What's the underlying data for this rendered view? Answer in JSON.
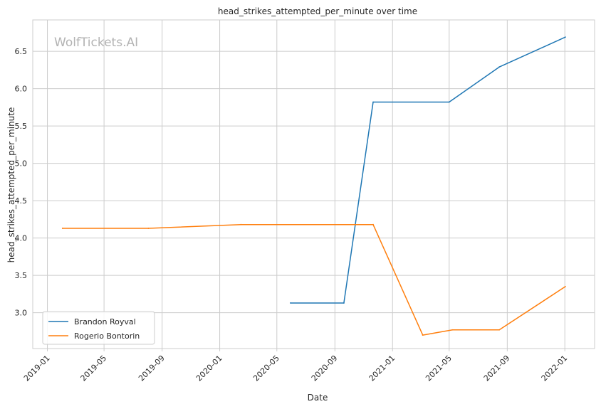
{
  "chart_data": {
    "type": "line",
    "title": "head_strikes_attempted_per_minute over time",
    "xlabel": "Date",
    "ylabel": "head_strikes_attempted_per_minute",
    "watermark": "WolfTickets.AI",
    "x_ticks": [
      "2019-01",
      "2019-05",
      "2019-09",
      "2020-01",
      "2020-05",
      "2020-09",
      "2021-01",
      "2021-05",
      "2021-09",
      "2022-01"
    ],
    "y_ticks": [
      "3.0",
      "3.5",
      "4.0",
      "4.5",
      "5.0",
      "5.5",
      "6.0",
      "6.5"
    ],
    "xlim": [
      "2018-12-01",
      "2022-03-05"
    ],
    "ylim": [
      2.52,
      6.92
    ],
    "grid": true,
    "legend_position": "lower-left",
    "series": [
      {
        "name": "Brandon Royval",
        "color": "#1f77b4",
        "points": [
          {
            "x": "2020-05-30",
            "y": 3.13
          },
          {
            "x": "2020-09-20",
            "y": 3.13
          },
          {
            "x": "2020-11-21",
            "y": 5.82
          },
          {
            "x": "2021-05-01",
            "y": 5.82
          },
          {
            "x": "2021-08-15",
            "y": 6.29
          },
          {
            "x": "2022-01-02",
            "y": 6.69
          }
        ]
      },
      {
        "name": "Rogerio Bontorin",
        "color": "#ff7f0e",
        "points": [
          {
            "x": "2019-02-02",
            "y": 4.13
          },
          {
            "x": "2019-08-03",
            "y": 4.13
          },
          {
            "x": "2020-02-15",
            "y": 4.18
          },
          {
            "x": "2020-11-21",
            "y": 4.18
          },
          {
            "x": "2021-03-06",
            "y": 2.7
          },
          {
            "x": "2021-05-08",
            "y": 2.77
          },
          {
            "x": "2021-08-15",
            "y": 2.77
          },
          {
            "x": "2022-01-02",
            "y": 3.35
          }
        ]
      }
    ]
  }
}
